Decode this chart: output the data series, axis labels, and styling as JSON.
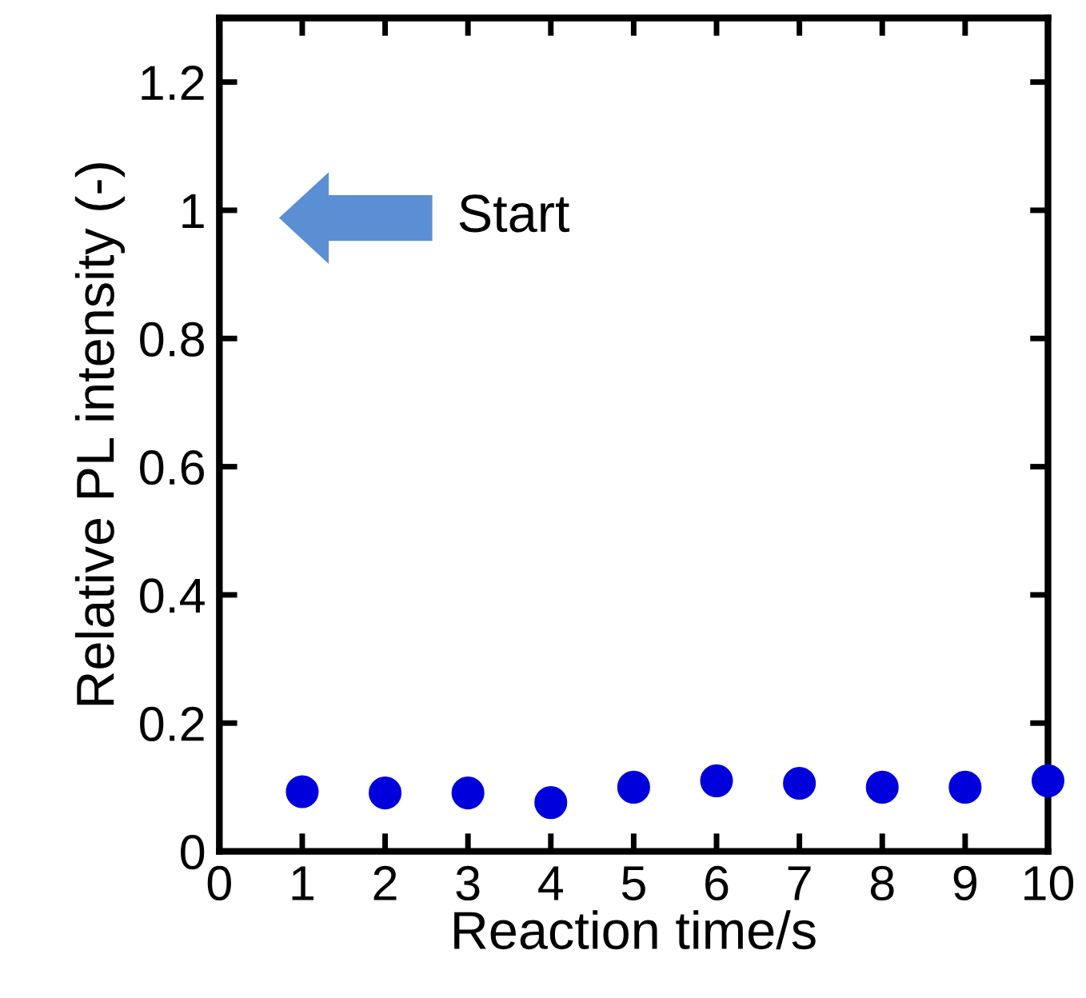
{
  "chart_data": {
    "type": "scatter",
    "xlabel": "Reaction time/s",
    "ylabel": "Relative PL intensity (-)",
    "x": [
      1,
      2,
      3,
      4,
      5,
      6,
      7,
      8,
      9,
      10
    ],
    "series": [
      {
        "color": "#0000dd",
        "values": [
          0.093,
          0.091,
          0.091,
          0.076,
          0.1,
          0.11,
          0.106,
          0.1,
          0.1,
          0.11
        ]
      }
    ],
    "xlim": [
      0,
      10
    ],
    "ylim": [
      0,
      1.3
    ],
    "xticks": [
      0,
      1,
      2,
      3,
      4,
      5,
      6,
      7,
      8,
      9,
      10
    ],
    "yticks": [
      {
        "value": 0,
        "label": "0"
      },
      0.2,
      0.4,
      0.6,
      0.8,
      {
        "value": 1,
        "label": "1"
      },
      1.2
    ],
    "marker": "circle",
    "grid": false,
    "legend": false,
    "annotations": [
      "Start"
    ]
  }
}
